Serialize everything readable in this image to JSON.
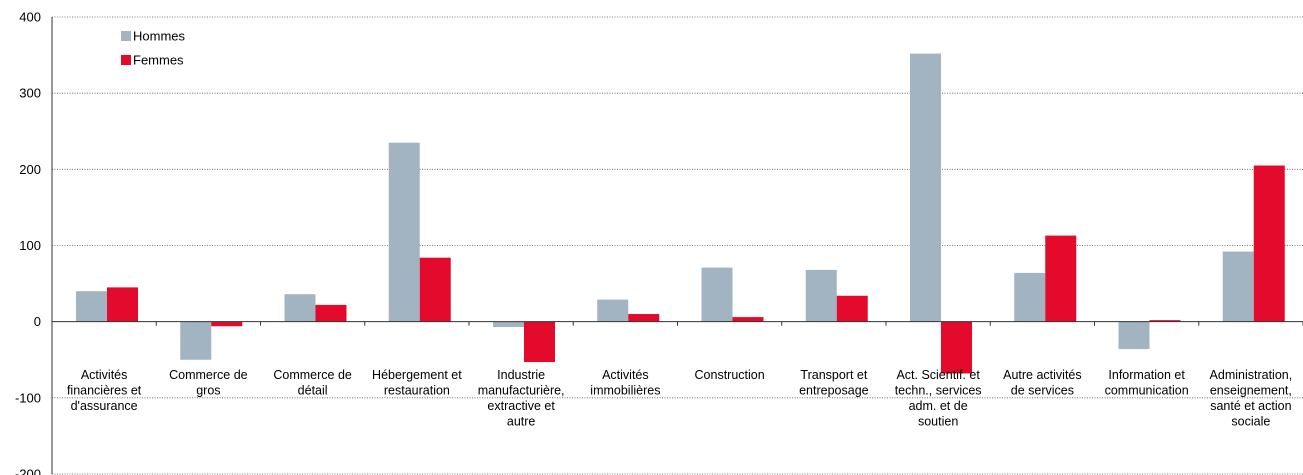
{
  "chart_data": {
    "type": "bar",
    "categories": [
      [
        "Activités",
        "financières et",
        "d'assurance"
      ],
      [
        "Commerce de",
        "gros"
      ],
      [
        "Commerce de",
        "détail"
      ],
      [
        "Hébergement et",
        "restauration"
      ],
      [
        "Industrie",
        "manufacturière,",
        "extractive et",
        "autre"
      ],
      [
        "Activités",
        "immobilières"
      ],
      [
        "Construction"
      ],
      [
        "Transport et",
        "entreposage"
      ],
      [
        "Act. Scientif. et",
        "techn., services",
        "adm. et de",
        "soutien"
      ],
      [
        "Autre activités",
        "de services"
      ],
      [
        "Information et",
        "communication"
      ],
      [
        "Administration,",
        "enseignement,",
        "santé et action",
        "sociale"
      ]
    ],
    "series": [
      {
        "name": "Hommes",
        "color": "#a2b3c2",
        "values": [
          40,
          -50,
          36,
          235,
          -7,
          29,
          71,
          68,
          352,
          64,
          -36,
          92
        ]
      },
      {
        "name": "Femmes",
        "color": "#e30a2b",
        "values": [
          45,
          -6,
          22,
          84,
          -53,
          10,
          6,
          34,
          -68,
          113,
          2,
          205
        ]
      }
    ],
    "yticks": [
      400,
      300,
      200,
      100,
      0,
      -100,
      -200
    ],
    "ylim": [
      -200,
      400
    ],
    "grid": true,
    "legend_position": "top-left"
  }
}
